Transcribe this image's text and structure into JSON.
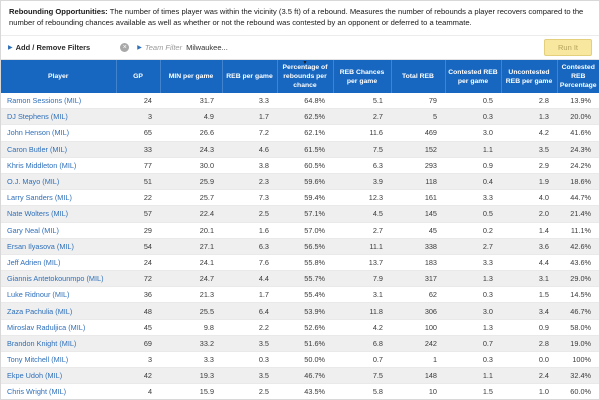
{
  "description": {
    "lead": "Rebounding Opportunities:",
    "text": " The number of times player was within the vicinity (3.5 ft) of a rebound. Measures the number of rebounds a player recovers compared to the number of rebounding chances available as well as whether or not the rebound was contested by an opponent or deferred to a teammate."
  },
  "filter_bar": {
    "add_remove_filters": "Add / Remove Filters",
    "team_filter_label": "Team Filter",
    "team_filter_value": "Milwaukee...",
    "run_button": "Run It",
    "arrow_icon": "▶",
    "clear_icon": "×"
  },
  "table": {
    "sort_column_index": 4,
    "sort_direction": "desc",
    "sort_arrow_icon": "▼",
    "columns": [
      "Player",
      "GP",
      "MIN per game",
      "REB per game",
      "Percentage of rebounds per chance",
      "REB Chances per game",
      "Total REB",
      "Contested REB per game",
      "Uncontested REB per game",
      "Contested REB Percentage"
    ],
    "rows": [
      [
        "Ramon Sessions (MIL)",
        "24",
        "31.7",
        "3.3",
        "64.8%",
        "5.1",
        "79",
        "0.5",
        "2.8",
        "13.9%"
      ],
      [
        "DJ Stephens (MIL)",
        "3",
        "4.9",
        "1.7",
        "62.5%",
        "2.7",
        "5",
        "0.3",
        "1.3",
        "20.0%"
      ],
      [
        "John Henson (MIL)",
        "65",
        "26.6",
        "7.2",
        "62.1%",
        "11.6",
        "469",
        "3.0",
        "4.2",
        "41.6%"
      ],
      [
        "Caron Butler (MIL)",
        "33",
        "24.3",
        "4.6",
        "61.5%",
        "7.5",
        "152",
        "1.1",
        "3.5",
        "24.3%"
      ],
      [
        "Khris Middleton (MIL)",
        "77",
        "30.0",
        "3.8",
        "60.5%",
        "6.3",
        "293",
        "0.9",
        "2.9",
        "24.2%"
      ],
      [
        "O.J. Mayo (MIL)",
        "51",
        "25.9",
        "2.3",
        "59.6%",
        "3.9",
        "118",
        "0.4",
        "1.9",
        "18.6%"
      ],
      [
        "Larry Sanders (MIL)",
        "22",
        "25.7",
        "7.3",
        "59.4%",
        "12.3",
        "161",
        "3.3",
        "4.0",
        "44.7%"
      ],
      [
        "Nate Wolters (MIL)",
        "57",
        "22.4",
        "2.5",
        "57.1%",
        "4.5",
        "145",
        "0.5",
        "2.0",
        "21.4%"
      ],
      [
        "Gary Neal (MIL)",
        "29",
        "20.1",
        "1.6",
        "57.0%",
        "2.7",
        "45",
        "0.2",
        "1.4",
        "11.1%"
      ],
      [
        "Ersan Ilyasova (MIL)",
        "54",
        "27.1",
        "6.3",
        "56.5%",
        "11.1",
        "338",
        "2.7",
        "3.6",
        "42.6%"
      ],
      [
        "Jeff Adrien (MIL)",
        "24",
        "24.1",
        "7.6",
        "55.8%",
        "13.7",
        "183",
        "3.3",
        "4.4",
        "43.6%"
      ],
      [
        "Giannis Antetokounmpo (MIL)",
        "72",
        "24.7",
        "4.4",
        "55.7%",
        "7.9",
        "317",
        "1.3",
        "3.1",
        "29.0%"
      ],
      [
        "Luke Ridnour (MIL)",
        "36",
        "21.3",
        "1.7",
        "55.4%",
        "3.1",
        "62",
        "0.3",
        "1.5",
        "14.5%"
      ],
      [
        "Zaza Pachulia (MIL)",
        "48",
        "25.5",
        "6.4",
        "53.9%",
        "11.8",
        "306",
        "3.0",
        "3.4",
        "46.7%"
      ],
      [
        "Miroslav Raduljica (MIL)",
        "45",
        "9.8",
        "2.2",
        "52.6%",
        "4.2",
        "100",
        "1.3",
        "0.9",
        "58.0%"
      ],
      [
        "Brandon Knight (MIL)",
        "69",
        "33.2",
        "3.5",
        "51.6%",
        "6.8",
        "242",
        "0.7",
        "2.8",
        "19.0%"
      ],
      [
        "Tony Mitchell (MIL)",
        "3",
        "3.3",
        "0.3",
        "50.0%",
        "0.7",
        "1",
        "0.3",
        "0.0",
        "100%"
      ],
      [
        "Ekpe Udoh (MIL)",
        "42",
        "19.3",
        "3.5",
        "46.7%",
        "7.5",
        "148",
        "1.1",
        "2.4",
        "32.4%"
      ],
      [
        "Chris Wright (MIL)",
        "4",
        "15.9",
        "2.5",
        "43.5%",
        "5.8",
        "10",
        "1.5",
        "1.0",
        "60.0%"
      ]
    ]
  },
  "colors": {
    "header_bg": "#1767c0",
    "header_divider": "#4283cd",
    "player_link": "#2e6fba",
    "alt_row_bg": "#efefef",
    "run_button_bg": "#f8e79e",
    "run_button_border": "#e3cf7c",
    "run_button_text": "#b3a45f"
  }
}
